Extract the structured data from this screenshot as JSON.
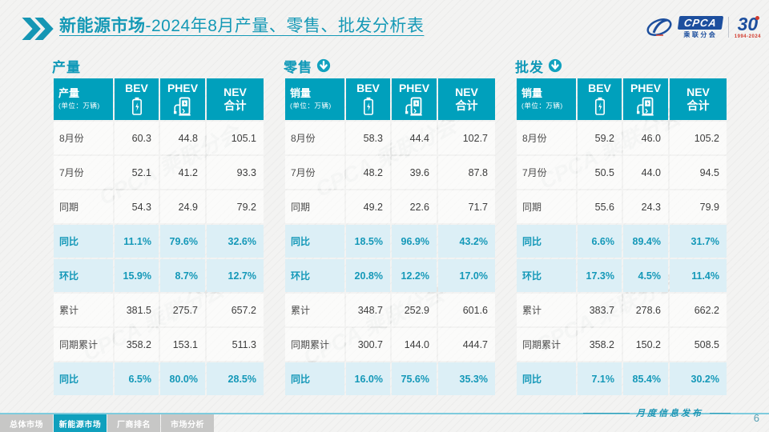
{
  "page": {
    "title_main": "新能源市场",
    "title_rest": "-2024年8月产量、零售、批发分析表",
    "watermark": "CPCA 乘联分会",
    "footer_note": "月度信息发布",
    "page_number": "6"
  },
  "logo": {
    "cpca_text": "CPCA",
    "cpca_sub": "乘联分会",
    "anniversary_number": "30",
    "anniversary_years": "1994-2024"
  },
  "footer_tabs": [
    {
      "label": "总体市场",
      "active": false
    },
    {
      "label": "新能源市场",
      "active": true
    },
    {
      "label": "厂商排名",
      "active": false
    },
    {
      "label": "市场分析",
      "active": false
    }
  ],
  "colors": {
    "accent_teal": "#00A0BC",
    "highlight_row_bg": "#DCEFF6",
    "highlight_text": "#1498B8",
    "logo_blue": "#1D4F9E",
    "anniversary_red": "#D23B2E"
  },
  "chart_data": [
    {
      "type": "table",
      "title": "产量",
      "arrow_icon": false,
      "corner_label": "产量",
      "corner_unit": "(单位：万辆)",
      "columns": [
        {
          "label": "BEV",
          "icon": "battery-icon"
        },
        {
          "label": "PHEV",
          "icon": "charging-station-icon"
        },
        {
          "label": "NEV 合计",
          "icon": null
        }
      ],
      "rows": [
        {
          "label": "8月份",
          "values": [
            "60.3",
            "44.8",
            "105.1"
          ],
          "highlight": false
        },
        {
          "label": "7月份",
          "values": [
            "52.1",
            "41.2",
            "93.3"
          ],
          "highlight": false
        },
        {
          "label": "同期",
          "values": [
            "54.3",
            "24.9",
            "79.2"
          ],
          "highlight": false
        },
        {
          "label": "同比",
          "values": [
            "11.1%",
            "79.6%",
            "32.6%"
          ],
          "highlight": true
        },
        {
          "label": "环比",
          "values": [
            "15.9%",
            "8.7%",
            "12.7%"
          ],
          "highlight": true
        },
        {
          "label": "累计",
          "values": [
            "381.5",
            "275.7",
            "657.2"
          ],
          "highlight": false
        },
        {
          "label": "同期累计",
          "values": [
            "358.2",
            "153.1",
            "511.3"
          ],
          "highlight": false
        },
        {
          "label": "同比",
          "values": [
            "6.5%",
            "80.0%",
            "28.5%"
          ],
          "highlight": true
        }
      ]
    },
    {
      "type": "table",
      "title": "零售",
      "arrow_icon": true,
      "corner_label": "销量",
      "corner_unit": "(单位：万辆)",
      "columns": [
        {
          "label": "BEV",
          "icon": "battery-icon"
        },
        {
          "label": "PHEV",
          "icon": "charging-station-icon"
        },
        {
          "label": "NEV 合计",
          "icon": null
        }
      ],
      "rows": [
        {
          "label": "8月份",
          "values": [
            "58.3",
            "44.4",
            "102.7"
          ],
          "highlight": false
        },
        {
          "label": "7月份",
          "values": [
            "48.2",
            "39.6",
            "87.8"
          ],
          "highlight": false
        },
        {
          "label": "同期",
          "values": [
            "49.2",
            "22.6",
            "71.7"
          ],
          "highlight": false
        },
        {
          "label": "同比",
          "values": [
            "18.5%",
            "96.9%",
            "43.2%"
          ],
          "highlight": true
        },
        {
          "label": "环比",
          "values": [
            "20.8%",
            "12.2%",
            "17.0%"
          ],
          "highlight": true
        },
        {
          "label": "累计",
          "values": [
            "348.7",
            "252.9",
            "601.6"
          ],
          "highlight": false
        },
        {
          "label": "同期累计",
          "values": [
            "300.7",
            "144.0",
            "444.7"
          ],
          "highlight": false
        },
        {
          "label": "同比",
          "values": [
            "16.0%",
            "75.6%",
            "35.3%"
          ],
          "highlight": true
        }
      ]
    },
    {
      "type": "table",
      "title": "批发",
      "arrow_icon": true,
      "corner_label": "销量",
      "corner_unit": "(单位：万辆)",
      "columns": [
        {
          "label": "BEV",
          "icon": "battery-icon"
        },
        {
          "label": "PHEV",
          "icon": "charging-station-icon"
        },
        {
          "label": "NEV 合计",
          "icon": null
        }
      ],
      "rows": [
        {
          "label": "8月份",
          "values": [
            "59.2",
            "46.0",
            "105.2"
          ],
          "highlight": false
        },
        {
          "label": "7月份",
          "values": [
            "50.5",
            "44.0",
            "94.5"
          ],
          "highlight": false
        },
        {
          "label": "同期",
          "values": [
            "55.6",
            "24.3",
            "79.9"
          ],
          "highlight": false
        },
        {
          "label": "同比",
          "values": [
            "6.6%",
            "89.4%",
            "31.7%"
          ],
          "highlight": true
        },
        {
          "label": "环比",
          "values": [
            "17.3%",
            "4.5%",
            "11.4%"
          ],
          "highlight": true
        },
        {
          "label": "累计",
          "values": [
            "383.7",
            "278.6",
            "662.2"
          ],
          "highlight": false
        },
        {
          "label": "同期累计",
          "values": [
            "358.2",
            "150.2",
            "508.5"
          ],
          "highlight": false
        },
        {
          "label": "同比",
          "values": [
            "7.1%",
            "85.4%",
            "30.2%"
          ],
          "highlight": true
        }
      ]
    }
  ]
}
